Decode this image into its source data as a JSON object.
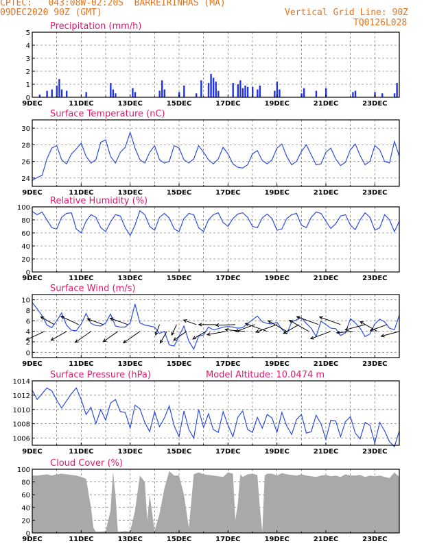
{
  "header": {
    "line1_left": "CPTEC:   043:08W-02:20S  BARREIRINHAS (MA)",
    "line2_left": "09DEC2020 90Z (GMT)",
    "line1_right": "Vertical Grid Line: 90Z",
    "line2_right": "TQ0126L028",
    "color": "#e8731a"
  },
  "colors": {
    "title": "#e0186e",
    "series": "#2b4be0",
    "bars": "#2033e6",
    "cloud": "#a9a9a9",
    "grid": "#555555"
  },
  "chart_data": [
    {
      "id": "precip",
      "type": "bar",
      "title": "Precipitation (mm/h)",
      "x_range": [
        9,
        24
      ],
      "ylim": [
        0,
        5
      ],
      "yticks": [
        0,
        1,
        2,
        3,
        4,
        5
      ],
      "xtick_labels": [
        "9DEC",
        "11DEC",
        "13DEC",
        "15DEC",
        "17DEC",
        "19DEC",
        "21DEC",
        "23DEC"
      ],
      "x": [
        9.3,
        9.6,
        9.8,
        10.0,
        10.1,
        10.2,
        10.4,
        11.2,
        12.2,
        12.3,
        12.4,
        13.1,
        13.2,
        14.2,
        14.3,
        14.4,
        15.0,
        15.2,
        15.7,
        15.9,
        16.2,
        16.3,
        16.4,
        16.5,
        16.6,
        17.2,
        17.4,
        17.5,
        17.6,
        17.7,
        17.8,
        18.0,
        18.2,
        18.3,
        18.9,
        19.0,
        19.1,
        20.0,
        20.1,
        20.6,
        21.0,
        22.1,
        22.2,
        23.0,
        23.3,
        23.8,
        23.9
      ],
      "values": [
        0.2,
        0.5,
        0.6,
        0.9,
        1.4,
        0.6,
        0.5,
        0.4,
        1.1,
        0.6,
        0.3,
        0.7,
        0.4,
        0.5,
        1.3,
        0.6,
        0.4,
        0.9,
        0.3,
        1.3,
        1.1,
        1.8,
        1.5,
        1.2,
        0.5,
        1.1,
        1.0,
        1.3,
        0.7,
        0.9,
        0.8,
        0.8,
        0.6,
        0.9,
        0.5,
        1.2,
        0.6,
        0.3,
        0.7,
        0.5,
        0.7,
        0.4,
        0.5,
        0.4,
        0.3,
        0.3,
        1.1
      ]
    },
    {
      "id": "temp",
      "type": "line",
      "title": "Surface Temperature (nC)",
      "x_range": [
        9,
        24
      ],
      "ylim": [
        23,
        31
      ],
      "yticks": [
        24,
        26,
        28,
        30
      ],
      "xtick_labels": [
        "9DEC",
        "11DEC",
        "13DEC",
        "15DEC",
        "17DEC",
        "19DEC",
        "21DEC",
        "23DEC"
      ],
      "x": [
        9.0,
        9.1,
        9.3,
        9.4,
        9.6,
        9.8,
        10.0,
        10.2,
        10.4,
        10.6,
        10.8,
        11.0,
        11.2,
        11.4,
        11.6,
        11.8,
        12.0,
        12.2,
        12.4,
        12.6,
        12.8,
        13.0,
        13.2,
        13.4,
        13.6,
        13.8,
        14.0,
        14.2,
        14.4,
        14.6,
        14.8,
        15.0,
        15.2,
        15.4,
        15.6,
        15.8,
        16.0,
        16.2,
        16.4,
        16.6,
        16.8,
        17.0,
        17.2,
        17.4,
        17.6,
        17.8,
        18.0,
        18.2,
        18.4,
        18.6,
        18.8,
        19.0,
        19.2,
        19.4,
        19.6,
        19.8,
        20.0,
        20.2,
        20.4,
        20.6,
        20.8,
        21.0,
        21.2,
        21.4,
        21.6,
        21.8,
        22.0,
        22.2,
        22.4,
        22.6,
        22.8,
        23.0,
        23.2,
        23.4,
        23.6,
        23.8,
        24.0
      ],
      "values": [
        23.7,
        23.9,
        24.2,
        24.3,
        26.3,
        27.6,
        27.9,
        26.2,
        25.7,
        26.9,
        27.5,
        28.2,
        26.6,
        25.8,
        26.2,
        28.3,
        28.6,
        26.6,
        25.8,
        27.1,
        27.7,
        29.5,
        27.6,
        26.2,
        25.8,
        27.1,
        27.9,
        26.2,
        25.8,
        26.0,
        27.9,
        27.6,
        26.2,
        25.8,
        26.3,
        27.9,
        27.1,
        26.2,
        25.7,
        26.3,
        27.7,
        26.9,
        25.7,
        25.3,
        25.2,
        25.6,
        26.9,
        27.3,
        26.1,
        25.7,
        26.2,
        27.6,
        28.1,
        26.6,
        25.6,
        26.0,
        27.2,
        28.0,
        26.8,
        25.6,
        25.7,
        27.1,
        27.6,
        26.3,
        25.5,
        25.9,
        27.4,
        28.1,
        26.7,
        25.6,
        26.0,
        27.9,
        27.4,
        26.0,
        25.8,
        28.4,
        26.6
      ]
    },
    {
      "id": "rh",
      "type": "line",
      "title": "Relative Humidity (%)",
      "x_range": [
        9,
        24
      ],
      "ylim": [
        0,
        100
      ],
      "yticks": [
        0,
        20,
        40,
        60,
        80,
        100
      ],
      "xtick_labels": [
        "9DEC",
        "11DEC",
        "13DEC",
        "15DEC",
        "17DEC",
        "19DEC",
        "21DEC",
        "23DEC"
      ],
      "x": [
        9.0,
        9.2,
        9.4,
        9.6,
        9.8,
        10.0,
        10.2,
        10.4,
        10.6,
        10.8,
        11.0,
        11.2,
        11.4,
        11.6,
        11.8,
        12.0,
        12.2,
        12.4,
        12.6,
        12.8,
        13.0,
        13.2,
        13.4,
        13.6,
        13.8,
        14.0,
        14.2,
        14.4,
        14.6,
        14.8,
        15.0,
        15.2,
        15.4,
        15.6,
        15.8,
        16.0,
        16.2,
        16.4,
        16.6,
        16.8,
        17.0,
        17.2,
        17.4,
        17.6,
        17.8,
        18.0,
        18.2,
        18.4,
        18.6,
        18.8,
        19.0,
        19.2,
        19.4,
        19.6,
        19.8,
        20.0,
        20.2,
        20.4,
        20.6,
        20.8,
        21.0,
        21.2,
        21.4,
        21.6,
        21.8,
        22.0,
        22.2,
        22.4,
        22.6,
        22.8,
        23.0,
        23.2,
        23.4,
        23.6,
        23.8,
        24.0
      ],
      "values": [
        93,
        88,
        92,
        80,
        68,
        66,
        84,
        90,
        91,
        66,
        60,
        78,
        88,
        84,
        68,
        62,
        77,
        88,
        86,
        68,
        56,
        72,
        94,
        88,
        70,
        64,
        84,
        90,
        83,
        66,
        62,
        82,
        90,
        88,
        68,
        62,
        80,
        88,
        91,
        76,
        70,
        82,
        89,
        91,
        84,
        70,
        68,
        83,
        89,
        82,
        64,
        66,
        82,
        88,
        90,
        72,
        68,
        84,
        92,
        90,
        78,
        67,
        74,
        86,
        88,
        72,
        65,
        80,
        91,
        84,
        64,
        68,
        88,
        80,
        62,
        78
      ]
    },
    {
      "id": "wind",
      "type": "line",
      "title": "Surface Wind (m/s)",
      "x_range": [
        9,
        24
      ],
      "ylim": [
        -1,
        11
      ],
      "yticks": [
        0,
        2,
        4,
        6,
        8,
        10
      ],
      "xtick_labels": [
        "9DEC",
        "11DEC",
        "13DEC",
        "15DEC",
        "17DEC",
        "19DEC",
        "21DEC",
        "23DEC"
      ],
      "x": [
        9.0,
        9.2,
        9.4,
        9.6,
        9.8,
        10.0,
        10.2,
        10.4,
        10.6,
        10.8,
        11.0,
        11.2,
        11.4,
        11.6,
        11.8,
        12.0,
        12.2,
        12.4,
        12.6,
        12.8,
        13.0,
        13.2,
        13.4,
        13.6,
        13.8,
        14.0,
        14.2,
        14.4,
        14.6,
        14.8,
        15.0,
        15.2,
        15.4,
        15.6,
        15.8,
        16.0,
        16.2,
        16.4,
        16.6,
        16.8,
        17.0,
        17.2,
        17.4,
        17.6,
        17.8,
        18.0,
        18.2,
        18.4,
        18.6,
        18.8,
        19.0,
        19.2,
        19.4,
        19.6,
        19.8,
        20.0,
        20.2,
        20.4,
        20.6,
        20.8,
        21.0,
        21.2,
        21.4,
        21.6,
        21.8,
        22.0,
        22.2,
        22.4,
        22.6,
        22.8,
        23.0,
        23.2,
        23.4,
        23.6,
        23.8,
        24.0
      ],
      "values": [
        9.5,
        8.3,
        7.0,
        5.2,
        4.7,
        6.0,
        7.5,
        5.2,
        4.2,
        4.1,
        5.4,
        7.4,
        5.5,
        5.1,
        5.0,
        5.6,
        7.3,
        5.0,
        4.8,
        4.8,
        5.6,
        9.2,
        5.6,
        5.2,
        5.0,
        4.8,
        3.6,
        4.0,
        1.4,
        1.2,
        3.1,
        5.0,
        2.1,
        0.6,
        3.1,
        3.3,
        4.8,
        4.3,
        4.5,
        4.8,
        4.9,
        4.8,
        4.6,
        4.7,
        5.5,
        6.2,
        6.9,
        5.8,
        5.5,
        5.4,
        5.7,
        4.4,
        3.5,
        5.8,
        6.2,
        6.6,
        5.5,
        4.6,
        3.0,
        5.9,
        5.3,
        4.6,
        4.5,
        3.2,
        3.7,
        6.4,
        5.6,
        4.6,
        3.0,
        3.5,
        5.4,
        6.3,
        5.8,
        4.6,
        4.3,
        7.1
      ]
    },
    {
      "id": "pressure",
      "type": "line",
      "title": "Surface Pressure (hPa)",
      "note": "Model Altitude: 10.0474 m",
      "x_range": [
        9,
        24
      ],
      "ylim": [
        1005,
        1014
      ],
      "yticks": [
        1006,
        1008,
        1010,
        1012,
        1014
      ],
      "xtick_labels": [
        "9DEC",
        "11DEC",
        "13DEC",
        "15DEC",
        "17DEC",
        "19DEC",
        "21DEC",
        "23DEC"
      ],
      "x": [
        9.0,
        9.2,
        9.4,
        9.6,
        9.8,
        10.0,
        10.2,
        10.4,
        10.6,
        10.8,
        11.0,
        11.2,
        11.4,
        11.6,
        11.8,
        12.0,
        12.2,
        12.4,
        12.6,
        12.8,
        13.0,
        13.2,
        13.4,
        13.6,
        13.8,
        14.0,
        14.2,
        14.4,
        14.6,
        14.8,
        15.0,
        15.2,
        15.4,
        15.6,
        15.8,
        16.0,
        16.2,
        16.4,
        16.6,
        16.8,
        17.0,
        17.2,
        17.4,
        17.6,
        17.8,
        18.0,
        18.2,
        18.4,
        18.6,
        18.8,
        19.0,
        19.2,
        19.4,
        19.6,
        19.8,
        20.0,
        20.2,
        20.4,
        20.6,
        20.8,
        21.0,
        21.2,
        21.4,
        21.6,
        21.8,
        22.0,
        22.2,
        22.4,
        22.6,
        22.8,
        23.0,
        23.2,
        23.4,
        23.6,
        23.8,
        24.0
      ],
      "values": [
        1012.7,
        1011.4,
        1012.2,
        1013.0,
        1012.6,
        1011.3,
        1010.2,
        1011.2,
        1012.2,
        1013.0,
        1011.4,
        1009.3,
        1010.3,
        1008.0,
        1010.0,
        1008.5,
        1010.9,
        1011.4,
        1009.7,
        1009.6,
        1007.4,
        1010.6,
        1010.1,
        1008.2,
        1006.9,
        1009.7,
        1007.6,
        1008.8,
        1010.5,
        1007.7,
        1006.2,
        1009.8,
        1007.2,
        1006.0,
        1010.0,
        1007.5,
        1009.4,
        1007.2,
        1006.8,
        1009.7,
        1007.8,
        1006.2,
        1008.9,
        1009.8,
        1007.2,
        1006.8,
        1008.9,
        1007.4,
        1009.3,
        1008.8,
        1006.8,
        1009.6,
        1007.7,
        1006.5,
        1008.6,
        1009.3,
        1006.7,
        1006.9,
        1009.2,
        1008.0,
        1005.8,
        1008.5,
        1008.4,
        1006.2,
        1008.3,
        1009.0,
        1006.7,
        1005.9,
        1008.2,
        1007.8,
        1005.3,
        1008.2,
        1007.0,
        1005.5,
        1004.8,
        1007.0
      ]
    },
    {
      "id": "cloud",
      "type": "area",
      "title": "Cloud Cover (%)",
      "x_range": [
        9,
        24
      ],
      "ylim": [
        0,
        100
      ],
      "yticks": [
        0,
        20,
        40,
        60,
        80,
        100
      ],
      "xtick_labels": [
        "9DEC",
        "11DEC",
        "13DEC",
        "15DEC",
        "17DEC",
        "19DEC",
        "21DEC",
        "23DEC"
      ],
      "x": [
        9.0,
        9.2,
        9.4,
        9.6,
        9.8,
        10.0,
        10.2,
        10.4,
        10.6,
        10.8,
        11.0,
        11.2,
        11.4,
        11.5,
        11.6,
        11.8,
        12.0,
        12.2,
        12.3,
        12.4,
        12.5,
        12.6,
        12.8,
        13.0,
        13.2,
        13.4,
        13.6,
        13.7,
        13.8,
        14.0,
        14.2,
        14.4,
        14.6,
        14.8,
        15.0,
        15.2,
        15.4,
        15.6,
        15.8,
        16.0,
        16.2,
        16.4,
        16.6,
        16.8,
        17.0,
        17.2,
        17.3,
        17.4,
        17.5,
        17.6,
        17.8,
        18.0,
        18.2,
        18.3,
        18.4,
        18.5,
        18.6,
        18.8,
        19.0,
        19.2,
        19.4,
        19.6,
        19.8,
        20.0,
        20.2,
        20.4,
        20.6,
        20.8,
        21.0,
        21.2,
        21.4,
        21.6,
        21.8,
        22.0,
        22.2,
        22.4,
        22.6,
        22.8,
        23.0,
        23.2,
        23.4,
        23.6,
        23.8,
        24.0
      ],
      "values": [
        90,
        90,
        91,
        92,
        90,
        92,
        93,
        92,
        91,
        90,
        88,
        85,
        40,
        8,
        2,
        2,
        3,
        35,
        96,
        60,
        2,
        2,
        3,
        2,
        35,
        90,
        80,
        20,
        60,
        3,
        30,
        70,
        97,
        90,
        90,
        60,
        8,
        92,
        95,
        92,
        91,
        90,
        89,
        88,
        95,
        93,
        20,
        45,
        92,
        88,
        92,
        93,
        91,
        40,
        2,
        90,
        93,
        93,
        90,
        94,
        92,
        91,
        90,
        92,
        90,
        89,
        88,
        90,
        91,
        89,
        90,
        88,
        92,
        90,
        90,
        91,
        88,
        90,
        89,
        90,
        88,
        86,
        95,
        88
      ]
    }
  ],
  "wind_vectors": {
    "note": "speed (m/s) and direction toward which the wind blows (degrees, 0=east, CCW)",
    "x": [
      9.5,
      9.9,
      10.4,
      10.9,
      11.4,
      11.9,
      12.5,
      12.9,
      13.4,
      14.2,
      14.5,
      14.9,
      15.3,
      15.7,
      16.1,
      16.5,
      16.9,
      17.3,
      17.7,
      18.1,
      18.6,
      19.0,
      19.4,
      19.9,
      20.3,
      20.7,
      21.2,
      21.6,
      22.1,
      22.6,
      23.1,
      23.5,
      24.0
    ],
    "speed": [
      4.5,
      3.5,
      4.0,
      4.4,
      4.3,
      3.8,
      4.0,
      4.2,
      4.5,
      2.5,
      3.0,
      2.6,
      3.5,
      3.0,
      3.4,
      3.8,
      4.2,
      4.4,
      4.5,
      4.6,
      5.2,
      5.0,
      4.8,
      4.0,
      5.0,
      5.2,
      4.8,
      5.0,
      3.6,
      4.6,
      4.4,
      4.0,
      4.2
    ],
    "direction": [
      205,
      150,
      210,
      155,
      215,
      160,
      215,
      160,
      215,
      250,
      240,
      245,
      215,
      160,
      210,
      180,
      190,
      182,
      175,
      200,
      160,
      200,
      150,
      210,
      150,
      160,
      200,
      160,
      185,
      195,
      150,
      200,
      195
    ]
  }
}
